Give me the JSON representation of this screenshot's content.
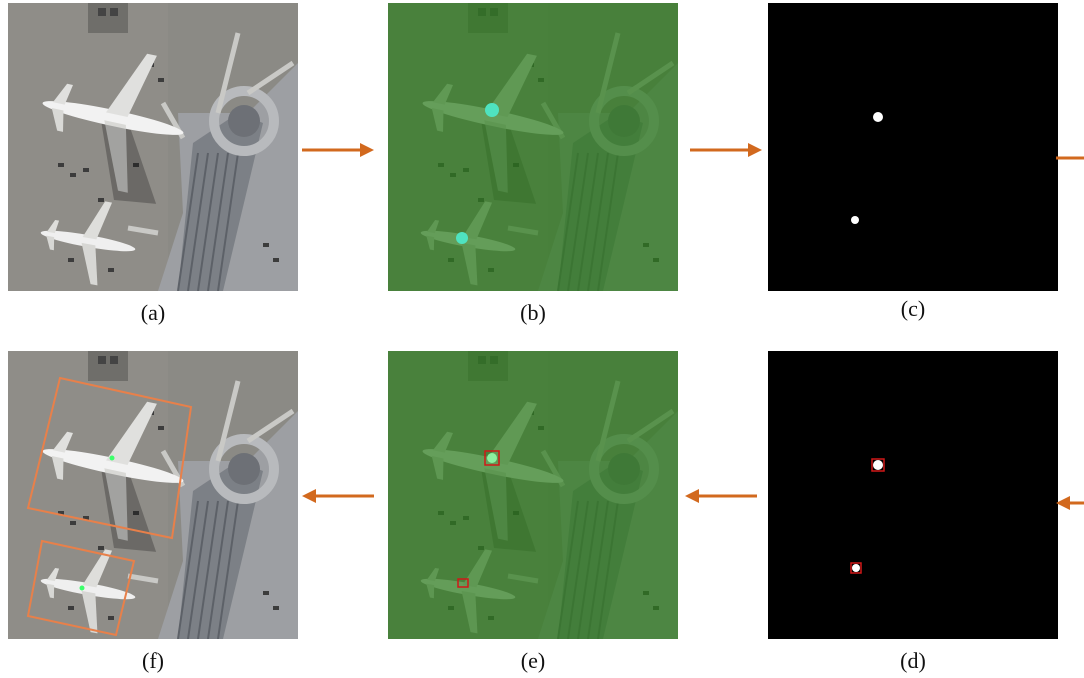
{
  "captions": {
    "a": "(a)",
    "b": "(b)",
    "c": "(c)",
    "d": "(d)",
    "e": "(e)",
    "f": "(f)"
  },
  "colors": {
    "arrow": "#d2691e",
    "box_orange": "#e8804a",
    "box_red": "#d01818",
    "heat_overlay": "#2e7d1e",
    "mask_background": "#000000",
    "mask_blob": "#ffffff"
  },
  "panels": [
    {
      "id": "a",
      "content": "aerial-airport-image"
    },
    {
      "id": "b",
      "content": "heatmap-overlay-image"
    },
    {
      "id": "c",
      "content": "binary-mask-center-points"
    },
    {
      "id": "d",
      "content": "binary-mask-with-boxes"
    },
    {
      "id": "e",
      "content": "heatmap-overlay-with-boxes"
    },
    {
      "id": "f",
      "content": "aerial-image-with-detections"
    }
  ]
}
